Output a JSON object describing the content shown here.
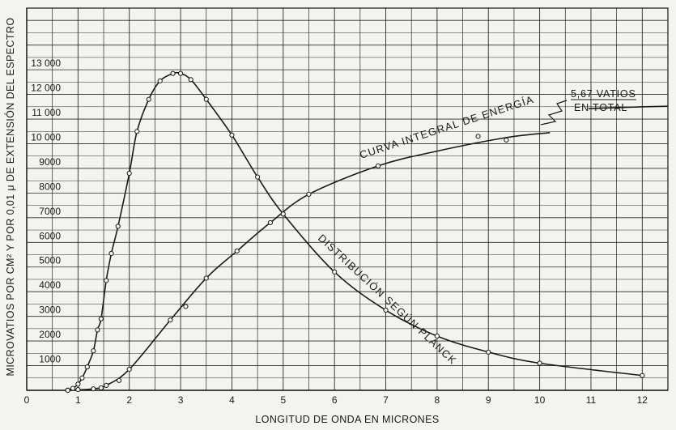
{
  "chart_data": {
    "type": "line",
    "title": "",
    "xlabel": "LONGITUD DE ONDA EN MICRONES",
    "ylabel": "MICROVATIOS POR CM² Y POR 0,01 μ DE EXTENSIÓN DEL ESPECTRO",
    "xlim": [
      0,
      12.5
    ],
    "ylim": [
      0,
      15500
    ],
    "x_ticks": [
      "0",
      "1",
      "2",
      "3",
      "4",
      "5",
      "6",
      "7",
      "8",
      "9",
      "10",
      "11",
      "12"
    ],
    "y_ticks": [
      "1000",
      "2000",
      "3000",
      "4000",
      "5000",
      "6000",
      "7000",
      "8000",
      "9000",
      "10 000",
      "11 000",
      "12 000",
      "13 000"
    ],
    "grid": true,
    "series": [
      {
        "name": "DISTRIBUCIÓN SEGÚN PLANCK",
        "x": [
          0.8,
          0.9,
          1.0,
          1.08,
          1.18,
          1.3,
          1.38,
          1.45,
          1.55,
          1.65,
          1.78,
          2.0,
          2.15,
          2.38,
          2.6,
          2.85,
          3.0,
          3.2,
          3.5,
          4.0,
          4.5,
          5.0,
          6.0,
          7.0,
          8.0,
          9.0,
          10.0,
          12.0
        ],
        "y": [
          10,
          80,
          250,
          500,
          950,
          1600,
          2450,
          2900,
          4450,
          5550,
          6650,
          8800,
          10500,
          11800,
          12550,
          12850,
          12850,
          12600,
          11800,
          10350,
          8650,
          7150,
          4800,
          3250,
          2200,
          1550,
          1100,
          600
        ]
      },
      {
        "name": "CURVA INTEGRAL DE ENERGÍA",
        "x": [
          0.8,
          1.0,
          1.3,
          1.45,
          1.55,
          1.8,
          2.0,
          2.8,
          3.1,
          3.5,
          4.1,
          4.75,
          5.5,
          6.85,
          8.8,
          9.35
        ],
        "y": [
          0,
          30,
          60,
          100,
          200,
          400,
          850,
          2850,
          3400,
          4550,
          5650,
          6800,
          7950,
          9100,
          10300,
          10150
        ]
      }
    ],
    "annotations": {
      "planck_curve_label": "DISTRIBUCIÓN SEGÚN PLANCK",
      "integral_curve_label": "CURVA INTEGRAL DE ENERGÍA",
      "total_line1": "5,67 VATIOS",
      "total_line2": "EN TOTAL"
    },
    "colors": {
      "ink": "#1a1a1a",
      "paper": "#f4f3ef"
    }
  }
}
